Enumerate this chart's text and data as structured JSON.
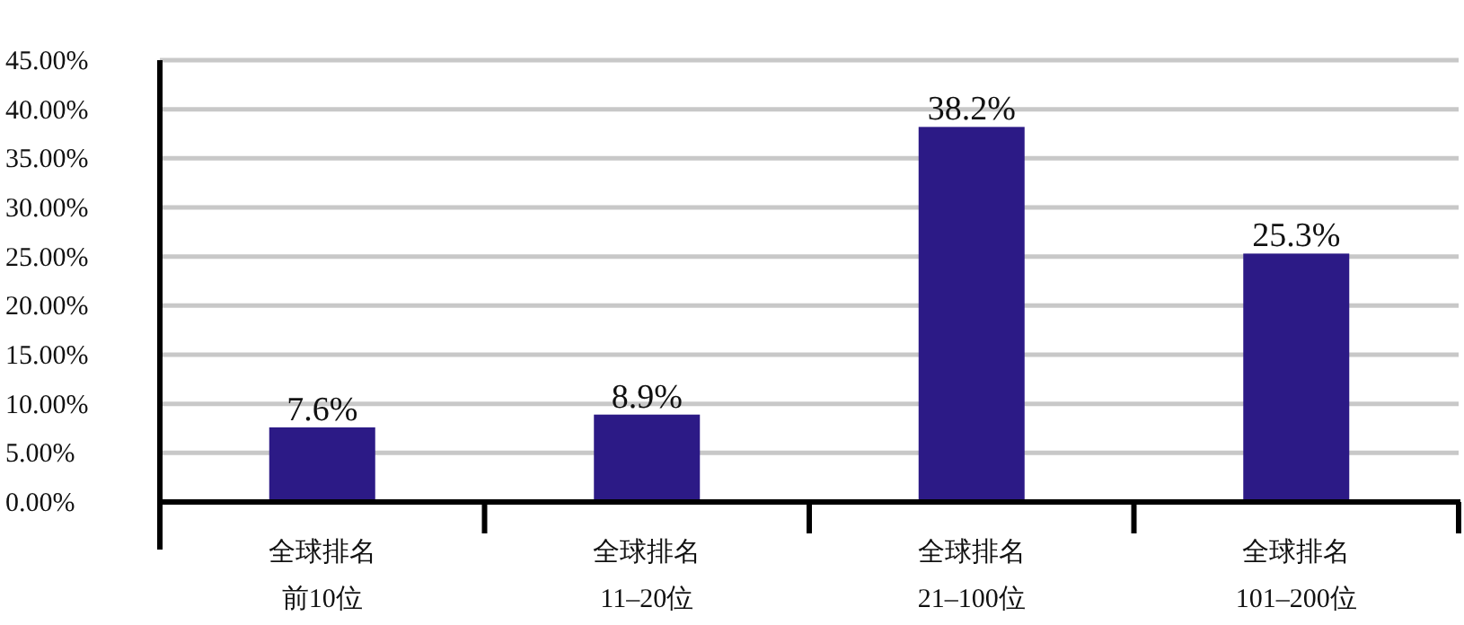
{
  "chart_data": {
    "type": "bar",
    "categories": [
      "全球排名前10位",
      "全球排名11–20位",
      "全球排名21–100位",
      "全球排名101–200位"
    ],
    "values": [
      7.6,
      8.9,
      38.2,
      25.3
    ],
    "value_labels": [
      "7.6%",
      "8.9%",
      "38.2%",
      "25.3%"
    ],
    "color": "#2c1a86",
    "ylim": [
      0,
      45
    ],
    "yticks": [
      {
        "value": 0,
        "label": "0.00%"
      },
      {
        "value": 5,
        "label": "5.00%"
      },
      {
        "value": 10,
        "label": "10.00%"
      },
      {
        "value": 15,
        "label": "15.00%"
      },
      {
        "value": 20,
        "label": "20.00%"
      },
      {
        "value": 25,
        "label": "25.00%"
      },
      {
        "value": 30,
        "label": "30.00%"
      },
      {
        "value": 35,
        "label": "35.00%"
      },
      {
        "value": 40,
        "label": "40.00%"
      },
      {
        "value": 45,
        "label": "45.00%"
      }
    ],
    "grid": "y"
  }
}
